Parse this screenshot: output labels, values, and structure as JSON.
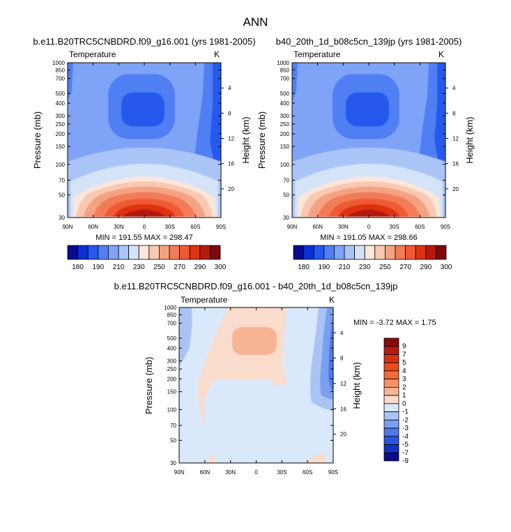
{
  "page_title": "ANN",
  "chart_data": [
    {
      "type": "heatmap",
      "title": "b.e11.B20TRC5CNBDRD.f09_g16.001 (yrs 1981-2005)",
      "left_label": "Temperature",
      "units": "K",
      "xlabel": "",
      "ylabel": "Pressure (mb)",
      "ylabel_right": "Height (km)",
      "x_ticks": [
        "90N",
        "60N",
        "30N",
        "0",
        "30S",
        "60S",
        "90S"
      ],
      "y_ticks": [
        "30",
        "50",
        "70",
        "100",
        "150",
        "200",
        "250",
        "300",
        "400",
        "500",
        "700",
        "850",
        "1000"
      ],
      "y_ticks_right": [
        "20",
        "16",
        "12",
        "8",
        "4"
      ],
      "min_max_text": "MIN = 191.55  MAX = 298.47",
      "min": 191.55,
      "max": 298.47,
      "colorbar_orientation": "horizontal",
      "colorbar_levels": [
        "180",
        "190",
        "210",
        "230",
        "250",
        "270",
        "290",
        "300"
      ]
    },
    {
      "type": "heatmap",
      "title": "b40_20th_1d_b08c5cn_139jp (yrs 1981-2005)",
      "left_label": "Temperature",
      "units": "K",
      "xlabel": "",
      "ylabel": "Pressure (mb)",
      "ylabel_right": "Height (km)",
      "x_ticks": [
        "90N",
        "60N",
        "30N",
        "0",
        "30S",
        "60S",
        "90S"
      ],
      "y_ticks": [
        "30",
        "50",
        "70",
        "100",
        "150",
        "200",
        "250",
        "300",
        "400",
        "500",
        "700",
        "850",
        "1000"
      ],
      "y_ticks_right": [
        "20",
        "16",
        "12",
        "8",
        "4"
      ],
      "min_max_text": "MIN = 191.05  MAX = 298.66",
      "min": 191.05,
      "max": 298.66,
      "colorbar_orientation": "horizontal",
      "colorbar_levels": [
        "180",
        "190",
        "210",
        "230",
        "250",
        "270",
        "290",
        "300"
      ]
    },
    {
      "type": "heatmap",
      "title": "b.e11.B20TRC5CNBDRD.f09_g16.001 - b40_20th_1d_b08c5cn_139jp",
      "left_label": "Temperature",
      "units": "K",
      "xlabel": "",
      "ylabel": "Pressure (mb)",
      "ylabel_right": "Height (km)",
      "x_ticks": [
        "90N",
        "60N",
        "30N",
        "0",
        "30S",
        "60S",
        "90S"
      ],
      "y_ticks": [
        "30",
        "50",
        "70",
        "100",
        "150",
        "200",
        "250",
        "300",
        "400",
        "500",
        "700",
        "850",
        "1000"
      ],
      "y_ticks_right": [
        "20",
        "16",
        "12",
        "8",
        "4"
      ],
      "min_max_text": "MIN =  -3.72  MAX =   1.75",
      "min": -3.72,
      "max": 1.75,
      "colorbar_orientation": "vertical",
      "colorbar_levels": [
        "9",
        "7",
        "5",
        "4",
        "3",
        "2",
        "1",
        "0",
        "-1",
        "-2",
        "-3",
        "-4",
        "-5",
        "-7",
        "-9"
      ]
    }
  ],
  "colors": {
    "abs_scale": [
      "#0a0a8c",
      "#0d2fd6",
      "#2558ee",
      "#4f7ff3",
      "#7ea3f7",
      "#abc4f8",
      "#d4e3f8",
      "#fbe6d9",
      "#f8c8b0",
      "#f5a283",
      "#f27b58",
      "#ef5a35",
      "#dd3311",
      "#b5190b",
      "#7f0909"
    ],
    "diff_scale": [
      "#8a0b0b",
      "#b81a10",
      "#d7320f",
      "#ee4a1c",
      "#f56a3b",
      "#f79066",
      "#f8b596",
      "#f9dccb",
      "#d9e8fb",
      "#a9c4f4",
      "#7a9ff0",
      "#4e78ec",
      "#2a55e4",
      "#1331c8",
      "#0a0a8a"
    ]
  }
}
